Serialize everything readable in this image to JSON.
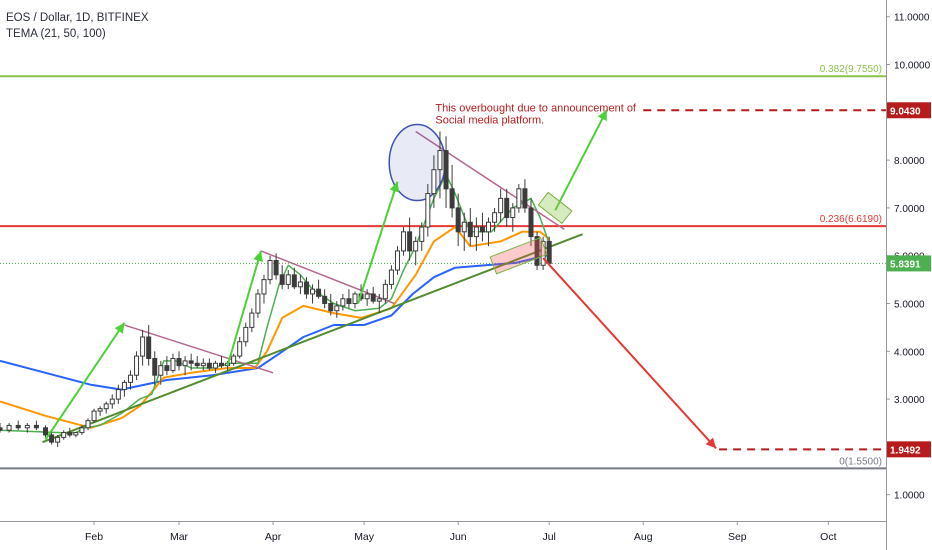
{
  "header": {
    "symbol_line": "EOS / Dollar, 1D, BITFINEX",
    "indicator_line": "TEMA (21, 50, 100)"
  },
  "chart_data": {
    "type": "candlestick",
    "y_axis": {
      "ticks": [
        {
          "value": 1,
          "label": "1.0000"
        },
        {
          "value": 2,
          "label": "2.0000"
        },
        {
          "value": 3,
          "label": "3.0000"
        },
        {
          "value": 4,
          "label": "4.0000"
        },
        {
          "value": 5,
          "label": "5.0000"
        },
        {
          "value": 6,
          "label": "6.0000"
        },
        {
          "value": 7,
          "label": "7.0000"
        },
        {
          "value": 8,
          "label": "8.0000"
        },
        {
          "value": 9,
          "label": "9.0000"
        },
        {
          "value": 10,
          "label": "10.0000"
        },
        {
          "value": 11,
          "label": "11.0000"
        }
      ],
      "range": [
        0.45,
        11.35
      ]
    },
    "x_axis": {
      "range_days": [
        0,
        292
      ],
      "ticks": [
        {
          "day": 31,
          "label": "Feb"
        },
        {
          "day": 59,
          "label": "Mar"
        },
        {
          "day": 90,
          "label": "Apr"
        },
        {
          "day": 120,
          "label": "May"
        },
        {
          "day": 151,
          "label": "Jun"
        },
        {
          "day": 181,
          "label": "Jul"
        },
        {
          "day": 212,
          "label": "Aug"
        },
        {
          "day": 243,
          "label": "Sep"
        },
        {
          "day": 273,
          "label": "Oct"
        }
      ]
    },
    "colors": {
      "up": "#26a69a",
      "down": "#ef5350",
      "candle": "#3c3c3c",
      "tema21": "#4caf50",
      "tema50": "#ff9800",
      "tema100": "#2962ff",
      "fib0382": "#8bc34a",
      "fib0236": "#e53935",
      "fib0": "#787b86",
      "target_up": "#b71c1c",
      "target_down": "#b71c1c",
      "current_price": "#4caf50",
      "trendline": "#558b2f",
      "wedge": "#b5688f",
      "arrow_up": "#4cd137",
      "arrow_down": "#e53935",
      "annotation_text": "#b71c1c"
    },
    "fib_levels": [
      {
        "value": 9.755,
        "label": "0.382(9.7550)",
        "color": "#8bc34a"
      },
      {
        "value": 6.619,
        "label": "0.236(6.6190)",
        "color": "#e53935"
      },
      {
        "value": 1.55,
        "label": "0(1.5500)",
        "color": "#787b86"
      }
    ],
    "price_labels": [
      {
        "value": 9.043,
        "label": "9.0430",
        "color": "#b71c1c"
      },
      {
        "value": 5.8391,
        "label": "5.8391",
        "color": "#4caf50"
      },
      {
        "value": 1.9492,
        "label": "1.9492",
        "color": "#b71c1c"
      }
    ],
    "annotation": {
      "lines": [
        "This overbought due to announcement of",
        "Social media platform."
      ],
      "day": 143.5,
      "value": 9.02
    },
    "tema21": [
      [
        0,
        2.35
      ],
      [
        20,
        2.3
      ],
      [
        25,
        2.3
      ],
      [
        28,
        2.4
      ],
      [
        33,
        2.45
      ],
      [
        40,
        2.7
      ],
      [
        46,
        3.0
      ],
      [
        50,
        3.1
      ],
      [
        54,
        3.8
      ],
      [
        58,
        3.8
      ],
      [
        63,
        3.65
      ],
      [
        70,
        3.65
      ],
      [
        76,
        3.75
      ],
      [
        85,
        3.75
      ],
      [
        88,
        4.5
      ],
      [
        92,
        5.4
      ],
      [
        95,
        5.8
      ],
      [
        99,
        5.6
      ],
      [
        103,
        5.3
      ],
      [
        110,
        5.0
      ],
      [
        117,
        4.85
      ],
      [
        125,
        4.9
      ],
      [
        129,
        5.1
      ],
      [
        133,
        5.7
      ],
      [
        137,
        6.2
      ],
      [
        143,
        7.2
      ],
      [
        147,
        7.7
      ],
      [
        150,
        7.3
      ],
      [
        155,
        6.5
      ],
      [
        162,
        6.5
      ],
      [
        169,
        7.0
      ],
      [
        175,
        7.2
      ],
      [
        178,
        6.8
      ],
      [
        181,
        6.25
      ]
    ],
    "tema50": [
      [
        0,
        2.95
      ],
      [
        15,
        2.65
      ],
      [
        30,
        2.4
      ],
      [
        40,
        2.6
      ],
      [
        46,
        2.85
      ],
      [
        54,
        3.45
      ],
      [
        63,
        3.55
      ],
      [
        75,
        3.65
      ],
      [
        84,
        3.65
      ],
      [
        88,
        4.0
      ],
      [
        93,
        4.7
      ],
      [
        100,
        4.95
      ],
      [
        110,
        4.8
      ],
      [
        119,
        4.7
      ],
      [
        129,
        4.9
      ],
      [
        137,
        5.6
      ],
      [
        143,
        6.3
      ],
      [
        150,
        6.6
      ],
      [
        155,
        6.2
      ],
      [
        165,
        6.3
      ],
      [
        172,
        6.5
      ],
      [
        178,
        6.5
      ],
      [
        181,
        6.35
      ]
    ],
    "tema100": [
      [
        0,
        3.8
      ],
      [
        15,
        3.55
      ],
      [
        30,
        3.3
      ],
      [
        40,
        3.2
      ],
      [
        55,
        3.4
      ],
      [
        70,
        3.5
      ],
      [
        85,
        3.65
      ],
      [
        92,
        3.95
      ],
      [
        100,
        4.3
      ],
      [
        110,
        4.55
      ],
      [
        120,
        4.55
      ],
      [
        129,
        4.75
      ],
      [
        136,
        5.2
      ],
      [
        143,
        5.55
      ],
      [
        150,
        5.75
      ],
      [
        160,
        5.8
      ],
      [
        170,
        5.85
      ],
      [
        181,
        6.02
      ]
    ],
    "candles": [
      [
        0,
        2.4,
        2.5,
        2.3,
        2.35
      ],
      [
        3,
        2.35,
        2.5,
        2.3,
        2.45
      ],
      [
        6,
        2.45,
        2.55,
        2.35,
        2.4
      ],
      [
        9,
        2.4,
        2.5,
        2.3,
        2.45
      ],
      [
        12,
        2.45,
        2.55,
        2.35,
        2.4
      ],
      [
        15,
        2.4,
        2.45,
        2.2,
        2.25
      ],
      [
        17,
        2.25,
        2.35,
        2.05,
        2.1
      ],
      [
        19,
        2.1,
        2.25,
        2.0,
        2.2
      ],
      [
        21,
        2.2,
        2.35,
        2.15,
        2.3
      ],
      [
        23,
        2.3,
        2.4,
        2.2,
        2.25
      ],
      [
        25,
        2.25,
        2.3,
        2.2,
        2.3
      ],
      [
        27,
        2.3,
        2.45,
        2.25,
        2.4
      ],
      [
        29,
        2.4,
        2.6,
        2.35,
        2.55
      ],
      [
        31,
        2.55,
        2.8,
        2.5,
        2.75
      ],
      [
        33,
        2.75,
        2.85,
        2.65,
        2.8
      ],
      [
        35,
        2.8,
        2.95,
        2.7,
        2.9
      ],
      [
        37,
        2.9,
        3.1,
        2.8,
        3.0
      ],
      [
        39,
        3.0,
        3.3,
        2.9,
        3.2
      ],
      [
        41,
        3.2,
        3.4,
        3.05,
        3.35
      ],
      [
        43,
        3.35,
        3.6,
        3.2,
        3.5
      ],
      [
        45,
        3.5,
        4.0,
        3.4,
        3.9
      ],
      [
        47,
        3.9,
        4.45,
        3.7,
        4.3
      ],
      [
        49,
        4.3,
        4.55,
        3.7,
        3.85
      ],
      [
        51,
        3.85,
        4.0,
        3.3,
        3.5
      ],
      [
        53,
        3.5,
        3.8,
        3.3,
        3.7
      ],
      [
        55,
        3.7,
        3.9,
        3.5,
        3.6
      ],
      [
        57,
        3.6,
        3.95,
        3.55,
        3.85
      ],
      [
        59,
        3.85,
        4.0,
        3.6,
        3.7
      ],
      [
        61,
        3.7,
        3.9,
        3.5,
        3.8
      ],
      [
        63,
        3.8,
        3.95,
        3.6,
        3.75
      ],
      [
        65,
        3.75,
        3.9,
        3.65,
        3.7
      ],
      [
        67,
        3.7,
        3.85,
        3.6,
        3.75
      ],
      [
        69,
        3.75,
        3.85,
        3.6,
        3.65
      ],
      [
        71,
        3.65,
        3.8,
        3.55,
        3.75
      ],
      [
        73,
        3.75,
        3.9,
        3.65,
        3.7
      ],
      [
        75,
        3.7,
        3.8,
        3.6,
        3.75
      ],
      [
        77,
        3.75,
        3.95,
        3.7,
        3.9
      ],
      [
        79,
        3.9,
        4.3,
        3.85,
        4.2
      ],
      [
        81,
        4.2,
        4.6,
        4.1,
        4.5
      ],
      [
        83,
        4.5,
        4.9,
        4.4,
        4.8
      ],
      [
        85,
        4.8,
        5.3,
        4.7,
        5.2
      ],
      [
        87,
        5.2,
        5.6,
        5.0,
        5.5
      ],
      [
        89,
        5.5,
        6.0,
        5.4,
        5.9
      ],
      [
        91,
        5.9,
        6.05,
        5.5,
        5.6
      ],
      [
        93,
        5.6,
        5.8,
        5.3,
        5.4
      ],
      [
        95,
        5.4,
        5.7,
        5.3,
        5.6
      ],
      [
        97,
        5.6,
        5.75,
        5.3,
        5.35
      ],
      [
        99,
        5.35,
        5.6,
        5.2,
        5.45
      ],
      [
        101,
        5.45,
        5.55,
        5.1,
        5.2
      ],
      [
        103,
        5.2,
        5.4,
        5.0,
        5.3
      ],
      [
        105,
        5.3,
        5.5,
        5.1,
        5.15
      ],
      [
        107,
        5.15,
        5.3,
        4.9,
        5.0
      ],
      [
        109,
        5.0,
        5.2,
        4.75,
        4.85
      ],
      [
        111,
        4.85,
        5.05,
        4.7,
        4.95
      ],
      [
        113,
        4.95,
        5.2,
        4.85,
        5.1
      ],
      [
        115,
        5.1,
        5.3,
        4.9,
        5.0
      ],
      [
        117,
        5.0,
        5.25,
        4.9,
        5.2
      ],
      [
        119,
        5.2,
        5.4,
        5.05,
        5.1
      ],
      [
        121,
        5.1,
        5.3,
        4.95,
        5.2
      ],
      [
        123,
        5.2,
        5.35,
        5.0,
        5.05
      ],
      [
        125,
        5.05,
        5.2,
        4.8,
        5.1
      ],
      [
        127,
        5.1,
        5.5,
        5.0,
        5.4
      ],
      [
        129,
        5.4,
        5.8,
        5.3,
        5.7
      ],
      [
        131,
        5.7,
        6.2,
        5.6,
        6.1
      ],
      [
        133,
        6.1,
        6.6,
        6.0,
        6.5
      ],
      [
        135,
        6.5,
        6.8,
        5.9,
        6.1
      ],
      [
        137,
        6.1,
        6.4,
        5.8,
        6.3
      ],
      [
        139,
        6.3,
        6.7,
        6.1,
        6.6
      ],
      [
        141,
        6.6,
        7.5,
        6.4,
        7.3
      ],
      [
        143,
        7.3,
        8.1,
        7.0,
        7.8
      ],
      [
        145,
        7.8,
        8.6,
        7.2,
        8.2
      ],
      [
        147,
        8.2,
        8.5,
        7.0,
        7.4
      ],
      [
        149,
        7.4,
        7.9,
        6.8,
        7.0
      ],
      [
        151,
        7.0,
        7.3,
        6.2,
        6.5
      ],
      [
        153,
        6.5,
        6.9,
        6.1,
        6.7
      ],
      [
        155,
        6.7,
        7.0,
        6.2,
        6.4
      ],
      [
        157,
        6.4,
        6.8,
        6.1,
        6.6
      ],
      [
        159,
        6.6,
        6.9,
        6.3,
        6.5
      ],
      [
        161,
        6.5,
        6.8,
        6.2,
        6.7
      ],
      [
        163,
        6.7,
        7.0,
        6.5,
        6.9
      ],
      [
        165,
        6.9,
        7.4,
        6.7,
        7.2
      ],
      [
        167,
        7.2,
        7.4,
        6.6,
        6.8
      ],
      [
        169,
        6.8,
        7.1,
        6.5,
        7.0
      ],
      [
        171,
        7.0,
        7.5,
        6.9,
        7.4
      ],
      [
        173,
        7.4,
        7.6,
        6.9,
        7.0
      ],
      [
        175,
        7.0,
        7.2,
        6.2,
        6.4
      ],
      [
        177,
        6.4,
        6.5,
        5.7,
        5.8
      ],
      [
        179,
        5.8,
        6.4,
        5.7,
        6.3
      ],
      [
        181,
        6.3,
        6.4,
        5.8,
        5.84
      ]
    ]
  }
}
